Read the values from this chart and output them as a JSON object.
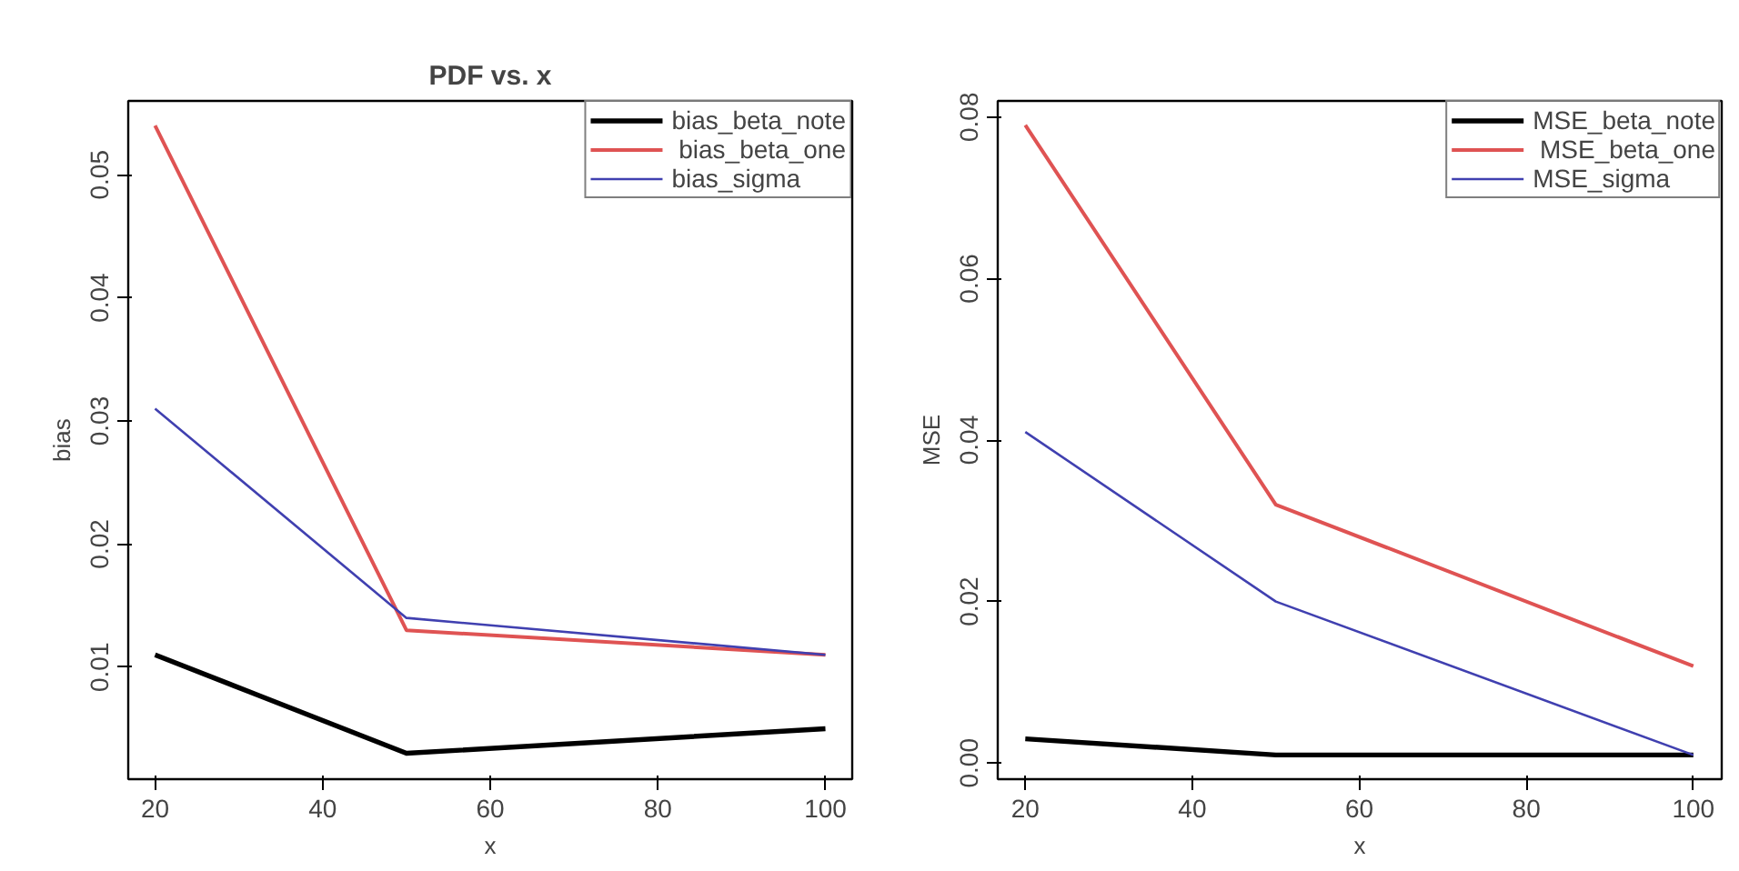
{
  "chart_data": [
    {
      "type": "line",
      "title": "PDF vs. x",
      "xlabel": "x",
      "ylabel": "bias",
      "x": [
        20,
        50,
        100
      ],
      "xlim": [
        16.8,
        103.2
      ],
      "xticks": [
        20,
        40,
        60,
        80,
        100
      ],
      "ylim": [
        0.0009,
        0.056
      ],
      "yticks": [
        0.01,
        0.02,
        0.03,
        0.04,
        0.05
      ],
      "grid": false,
      "legend": "top right",
      "line_style": "solid",
      "marker": "none",
      "series": [
        {
          "name": "bias_beta_note",
          "color": "#000000",
          "values": [
            0.011,
            0.003,
            0.005
          ]
        },
        {
          "name": " bias_beta_one",
          "color": "#df5353",
          "values": [
            0.054,
            0.013,
            0.011
          ]
        },
        {
          "name": "bias_sigma",
          "color": "#4040b0",
          "values": [
            0.031,
            0.014,
            0.011
          ]
        }
      ]
    },
    {
      "type": "line",
      "xlabel": "x",
      "ylabel": "MSE",
      "x": [
        20,
        50,
        100
      ],
      "xlim": [
        16.7,
        103.4
      ],
      "xticks": [
        20,
        40,
        60,
        80,
        100
      ],
      "ylim": [
        -0.002,
        0.082
      ],
      "yticks": [
        {
          "value": 0,
          "label": "0.00"
        },
        0.02,
        0.04,
        0.06,
        0.08
      ],
      "grid": false,
      "legend": "top right",
      "line_style": "solid",
      "marker": "none",
      "series": [
        {
          "name": "MSE_beta_note",
          "color": "#000000",
          "values": [
            0.003,
            0.001,
            0.001
          ]
        },
        {
          "name": " MSE_beta_one",
          "color": "#df5353",
          "values": [
            0.079,
            0.032,
            0.012
          ]
        },
        {
          "name": "MSE_sigma",
          "color": "#4040b0",
          "values": [
            0.041,
            0.02,
            0.001
          ]
        }
      ]
    }
  ]
}
